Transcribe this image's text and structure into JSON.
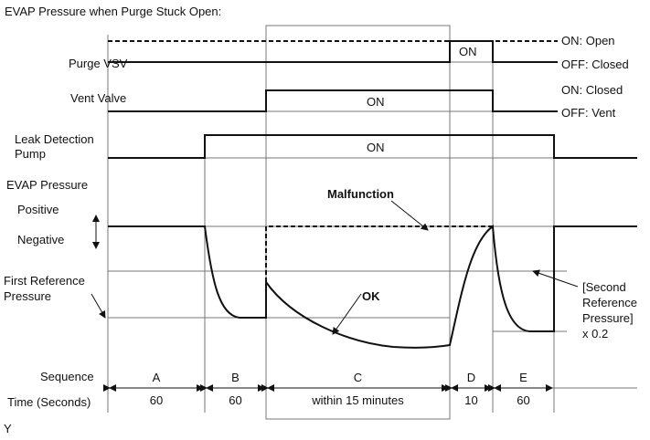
{
  "title": "EVAP Pressure when Purge Stuck Open:",
  "signals": {
    "purge_vsv": {
      "label": "Purge VSV",
      "on_state": "ON: Open",
      "off_state": "OFF: Closed",
      "pulse_label": "ON"
    },
    "vent_valve": {
      "label": "Vent Valve",
      "on_state": "ON: Closed",
      "off_state": "OFF: Vent",
      "pulse_label": "ON"
    },
    "leak_pump": {
      "label_line1": "Leak Detection",
      "label_line2": "Pump",
      "pulse_label": "ON"
    },
    "evap": {
      "label": "EVAP Pressure",
      "positive": "Positive",
      "negative": "Negative",
      "first_ref_line1": "First Reference",
      "first_ref_line2": "Pressure",
      "second_ref_line1": "[Second",
      "second_ref_line2": "Reference",
      "second_ref_line3": "Pressure]",
      "second_ref_line4": "x 0.2",
      "malfunction": "Malfunction",
      "ok": "OK"
    }
  },
  "sequence": {
    "label": "Sequence",
    "time_label": "Time (Seconds)",
    "steps": [
      {
        "name": "A",
        "time": "60"
      },
      {
        "name": "B",
        "time": "60"
      },
      {
        "name": "C",
        "time": "within 15 minutes"
      },
      {
        "name": "D",
        "time": "10"
      },
      {
        "name": "E",
        "time": "60"
      }
    ]
  },
  "footnote": "Y"
}
